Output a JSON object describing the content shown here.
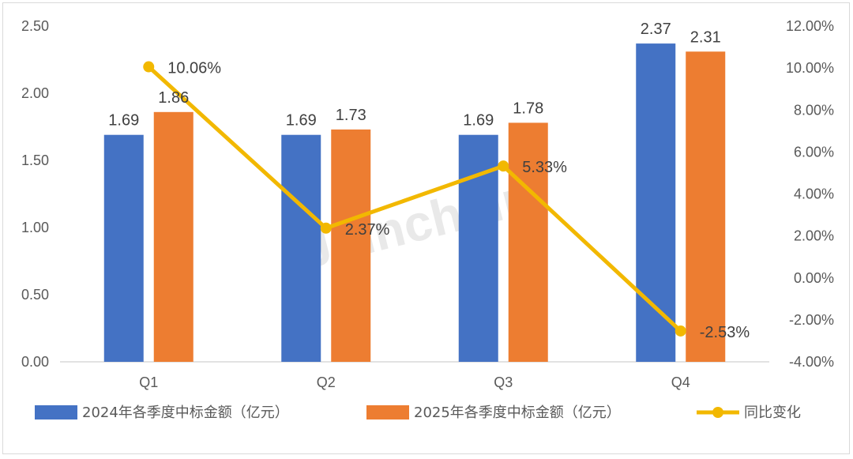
{
  "chart_data": {
    "type": "bar",
    "categories": [
      "Q1",
      "Q2",
      "Q3",
      "Q4"
    ],
    "series": [
      {
        "name": "2024年各季度中标金额（亿元）",
        "kind": "bar",
        "axis": "left",
        "color": "#4472C4",
        "values": [
          1.69,
          1.69,
          1.69,
          2.37
        ],
        "labels": [
          "1.69",
          "1.69",
          "1.69",
          "2.37"
        ]
      },
      {
        "name": "2025年各季度中标金额（亿元）",
        "kind": "bar",
        "axis": "left",
        "color": "#ED7D31",
        "values": [
          1.86,
          1.73,
          1.78,
          2.31
        ],
        "labels": [
          "1.86",
          "1.73",
          "1.78",
          "2.31"
        ]
      },
      {
        "name": "同比变化",
        "kind": "line",
        "axis": "right",
        "color": "#F2B800",
        "values": [
          10.06,
          2.37,
          5.33,
          -2.53
        ],
        "labels": [
          "10.06%",
          "2.37%",
          "5.33%",
          "-2.53%"
        ]
      }
    ],
    "y_left": {
      "min": 0,
      "max": 2.5,
      "ticks": [
        "0.00",
        "0.50",
        "1.00",
        "1.50",
        "2.00",
        "2.50"
      ]
    },
    "y_right": {
      "min": -4,
      "max": 12,
      "ticks": [
        "-4.00%",
        "-2.00%",
        "0.00%",
        "2.00%",
        "4.00%",
        "6.00%",
        "8.00%",
        "10.00%",
        "12.00%"
      ]
    },
    "legend_position": "bottom",
    "grid": false
  },
  "watermark": "Joinchain"
}
